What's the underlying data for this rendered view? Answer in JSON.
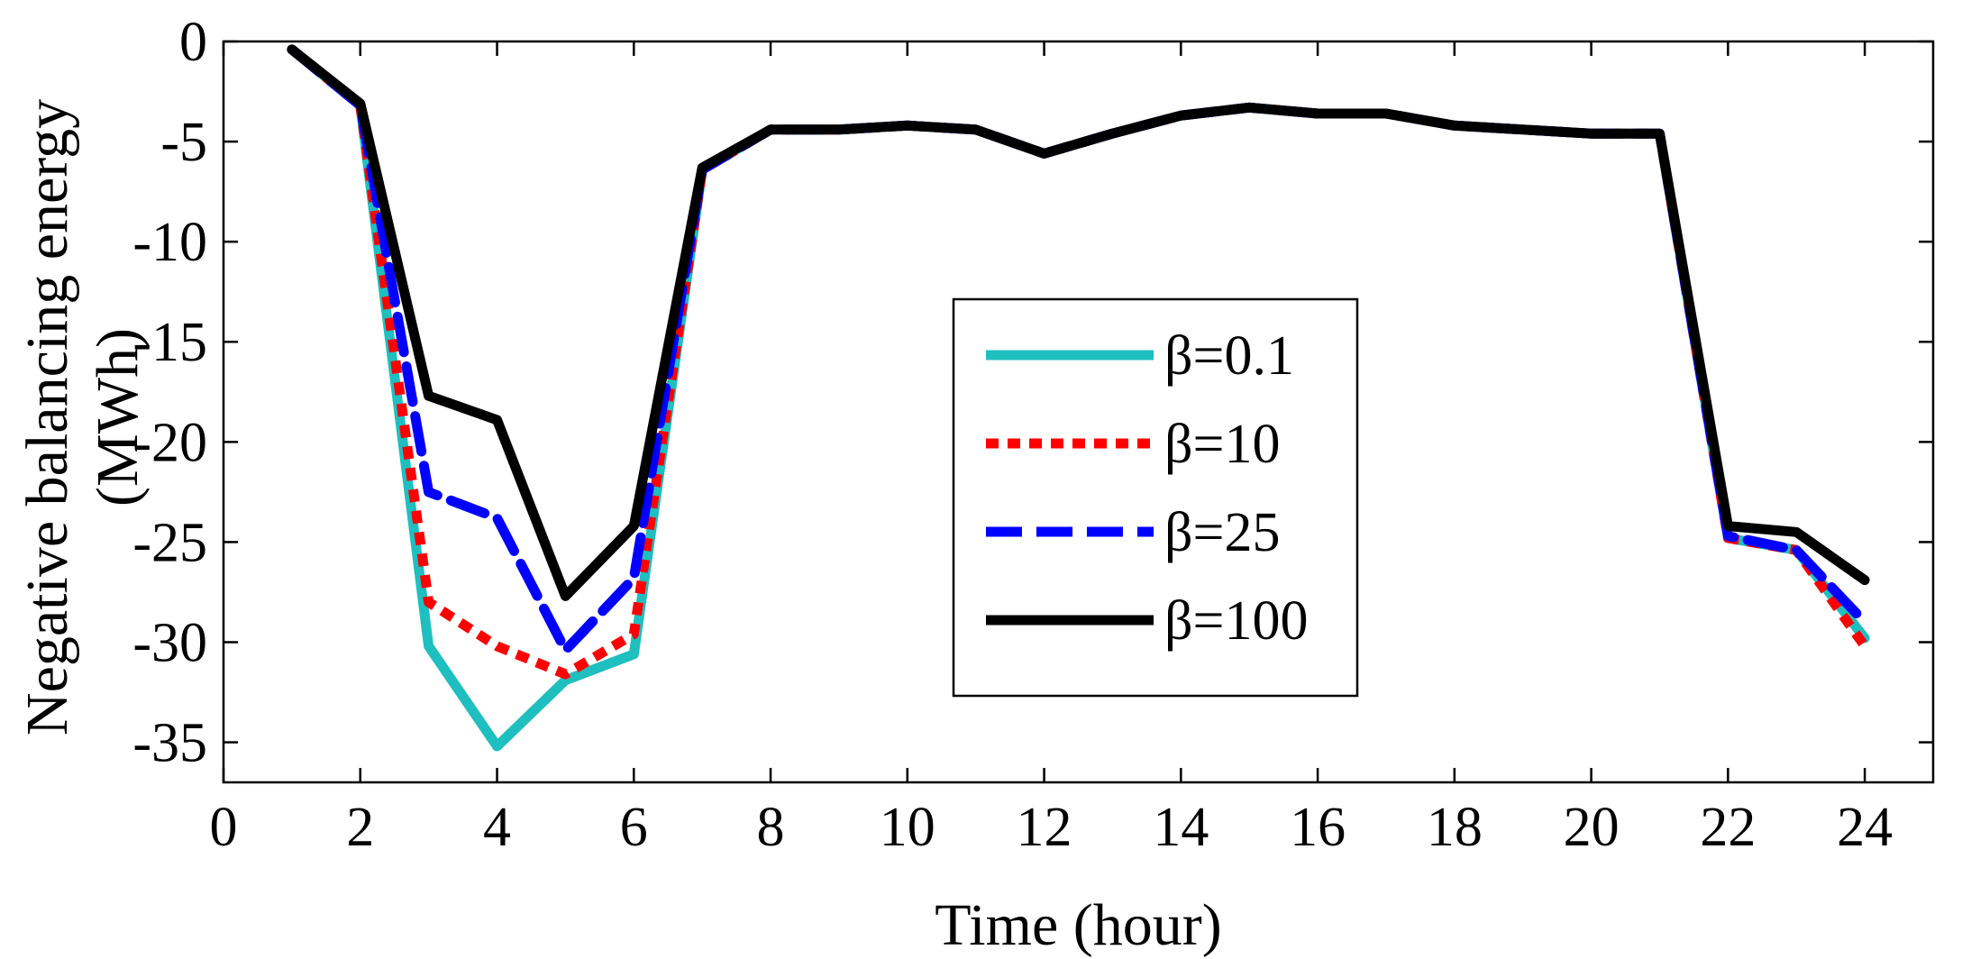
{
  "chart_data": {
    "type": "line",
    "title": "",
    "xlabel": "Time (hour)",
    "ylabel_lines": [
      "Negative balancing energy",
      "(MWh)"
    ],
    "xlim": [
      0,
      25
    ],
    "ylim": [
      -37,
      0
    ],
    "xticks": [
      0,
      2,
      4,
      6,
      8,
      10,
      12,
      14,
      16,
      18,
      20,
      22,
      24
    ],
    "yticks": [
      0,
      -5,
      -10,
      -15,
      -20,
      -25,
      -30,
      -35
    ],
    "grid": false,
    "legend_position": "center",
    "x": [
      1,
      2,
      3,
      4,
      5,
      6,
      7,
      8,
      9,
      10,
      11,
      12,
      13,
      14,
      15,
      16,
      17,
      18,
      19,
      20,
      21,
      22,
      23,
      24
    ],
    "series": [
      {
        "name": "β=0.1",
        "color": "#1fbfbf",
        "style": "solid",
        "values": [
          -0.4,
          -3.2,
          -30.2,
          -35.2,
          -31.9,
          -30.6,
          -6.4,
          -4.4,
          -4.4,
          -4.2,
          -4.4,
          -5.6,
          -4.6,
          -3.7,
          -3.3,
          -3.6,
          -3.6,
          -4.2,
          -4.4,
          -4.6,
          -4.6,
          -24.8,
          -25.4,
          -29.8
        ]
      },
      {
        "name": "β=10",
        "color": "#ff0000",
        "style": "dotted",
        "values": [
          -0.4,
          -3.2,
          -28.0,
          -30.2,
          -31.6,
          -29.6,
          -6.4,
          -4.4,
          -4.4,
          -4.2,
          -4.4,
          -5.6,
          -4.6,
          -3.7,
          -3.3,
          -3.6,
          -3.6,
          -4.2,
          -4.4,
          -4.6,
          -4.6,
          -24.8,
          -25.4,
          -30.2
        ]
      },
      {
        "name": "β=25",
        "color": "#0000ff",
        "style": "dashed",
        "values": [
          -0.4,
          -3.2,
          -22.5,
          -23.8,
          -30.4,
          -26.8,
          -6.4,
          -4.4,
          -4.4,
          -4.2,
          -4.4,
          -5.6,
          -4.6,
          -3.7,
          -3.3,
          -3.6,
          -3.6,
          -4.2,
          -4.4,
          -4.6,
          -4.6,
          -24.7,
          -25.4,
          -29.0
        ]
      },
      {
        "name": "β=100",
        "color": "#000000",
        "style": "solid",
        "values": [
          -0.4,
          -3.1,
          -17.7,
          -18.9,
          -27.7,
          -24.2,
          -6.3,
          -4.4,
          -4.4,
          -4.2,
          -4.4,
          -5.6,
          -4.6,
          -3.7,
          -3.3,
          -3.6,
          -3.6,
          -4.2,
          -4.4,
          -4.6,
          -4.6,
          -24.2,
          -24.5,
          -26.9
        ]
      }
    ]
  }
}
